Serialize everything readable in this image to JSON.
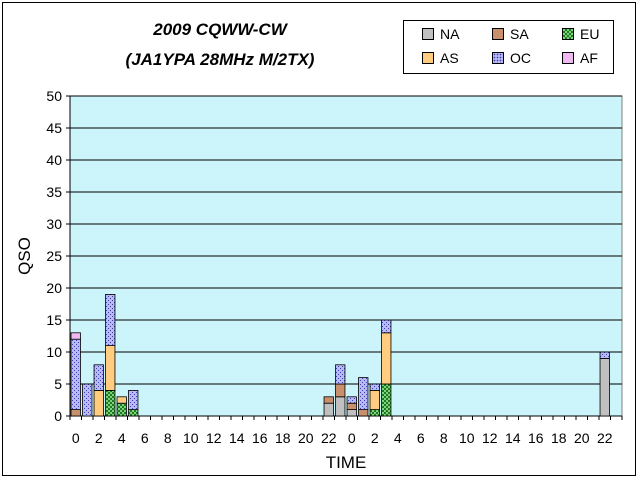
{
  "chart_data": {
    "type": "bar",
    "stacked": true,
    "title": "2009 CQWW-CW",
    "subtitle": "(JA1YPA  28MHz M/2TX)",
    "xlabel": "TIME",
    "ylabel": "QSO",
    "ylim": [
      0,
      50
    ],
    "yticks": [
      0,
      5,
      10,
      15,
      20,
      25,
      30,
      35,
      40,
      45,
      50
    ],
    "grid": true,
    "legend_position": "top-right",
    "plot_background": "#ccf5fb",
    "categories": [
      "0",
      "1",
      "2",
      "3",
      "4",
      "5",
      "6",
      "7",
      "8",
      "9",
      "10",
      "11",
      "12",
      "13",
      "14",
      "15",
      "16",
      "17",
      "18",
      "19",
      "20",
      "21",
      "22",
      "23",
      "0",
      "1",
      "2",
      "3",
      "4",
      "5",
      "6",
      "7",
      "8",
      "9",
      "10",
      "11",
      "12",
      "13",
      "14",
      "15",
      "16",
      "17",
      "18",
      "19",
      "20",
      "21",
      "22",
      "23"
    ],
    "xtick_labels": [
      "0",
      "2",
      "4",
      "6",
      "8",
      "10",
      "12",
      "14",
      "16",
      "18",
      "20",
      "22",
      "0",
      "2",
      "4",
      "6",
      "8",
      "10",
      "12",
      "14",
      "16",
      "18",
      "20",
      "22"
    ],
    "series": [
      {
        "name": "NA",
        "color": "#c0c0c0",
        "pattern": "solid",
        "values": [
          0,
          0,
          0,
          0,
          0,
          0,
          0,
          0,
          0,
          0,
          0,
          0,
          0,
          0,
          0,
          0,
          0,
          0,
          0,
          0,
          0,
          0,
          2,
          3,
          1,
          0,
          0,
          0,
          0,
          0,
          0,
          0,
          0,
          0,
          0,
          0,
          0,
          0,
          0,
          0,
          0,
          0,
          0,
          0,
          0,
          0,
          9,
          0
        ]
      },
      {
        "name": "SA",
        "color": "#c8906c",
        "pattern": "solid",
        "values": [
          1,
          0,
          0,
          0,
          0,
          0,
          0,
          0,
          0,
          0,
          0,
          0,
          0,
          0,
          0,
          0,
          0,
          0,
          0,
          0,
          0,
          0,
          1,
          2,
          1,
          1,
          0,
          0,
          0,
          0,
          0,
          0,
          0,
          0,
          0,
          0,
          0,
          0,
          0,
          0,
          0,
          0,
          0,
          0,
          0,
          0,
          0,
          0
        ]
      },
      {
        "name": "EU",
        "color": "#7ed37e",
        "pattern": "checker",
        "values": [
          0,
          0,
          0,
          4,
          2,
          1,
          0,
          0,
          0,
          0,
          0,
          0,
          0,
          0,
          0,
          0,
          0,
          0,
          0,
          0,
          0,
          0,
          0,
          0,
          0,
          0,
          1,
          5,
          0,
          0,
          0,
          0,
          0,
          0,
          0,
          0,
          0,
          0,
          0,
          0,
          0,
          0,
          0,
          0,
          0,
          0,
          0,
          0
        ]
      },
      {
        "name": "AS",
        "color": "#ffcc80",
        "pattern": "solid",
        "values": [
          0,
          0,
          4,
          7,
          1,
          0,
          0,
          0,
          0,
          0,
          0,
          0,
          0,
          0,
          0,
          0,
          0,
          0,
          0,
          0,
          0,
          0,
          0,
          0,
          0,
          0,
          3,
          8,
          0,
          0,
          0,
          0,
          0,
          0,
          0,
          0,
          0,
          0,
          0,
          0,
          0,
          0,
          0,
          0,
          0,
          0,
          0,
          0
        ]
      },
      {
        "name": "OC",
        "color": "#9a9cf0",
        "pattern": "dots",
        "values": [
          11,
          5,
          4,
          8,
          0,
          3,
          0,
          0,
          0,
          0,
          0,
          0,
          0,
          0,
          0,
          0,
          0,
          0,
          0,
          0,
          0,
          0,
          0,
          3,
          1,
          5,
          1,
          2,
          0,
          0,
          0,
          0,
          0,
          0,
          0,
          0,
          0,
          0,
          0,
          0,
          0,
          0,
          0,
          0,
          0,
          0,
          1,
          0
        ]
      },
      {
        "name": "AF",
        "color": "#f0b8f0",
        "pattern": "solid",
        "values": [
          1,
          0,
          0,
          0,
          0,
          0,
          0,
          0,
          0,
          0,
          0,
          0,
          0,
          0,
          0,
          0,
          0,
          0,
          0,
          0,
          0,
          0,
          0,
          0,
          0,
          0,
          0,
          0,
          0,
          0,
          0,
          0,
          0,
          0,
          0,
          0,
          0,
          0,
          0,
          0,
          0,
          0,
          0,
          0,
          0,
          0,
          0,
          0
        ]
      }
    ]
  }
}
